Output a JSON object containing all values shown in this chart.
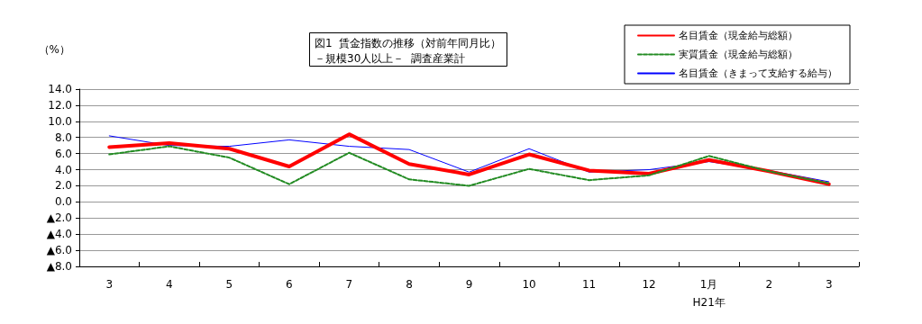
{
  "chart_data": {
    "type": "line",
    "title": "図1  賃金指数の推移（対前年同月比）",
    "subtitle": "－規模30人以上－  調査産業計",
    "ylabel": "（%）",
    "categories": [
      "3",
      "4",
      "5",
      "6",
      "7",
      "8",
      "9",
      "10",
      "11",
      "12",
      "1月\nH21年",
      "2",
      "3"
    ],
    "series": [
      {
        "name": "名目賃金（現金給与総額）",
        "color": "#ff0000",
        "line_style": "solid",
        "values": [
          6.8,
          7.3,
          6.6,
          4.4,
          8.4,
          4.7,
          3.4,
          5.9,
          3.9,
          3.5,
          5.2,
          3.8,
          2.2
        ]
      },
      {
        "name": "実質賃金（現金給与総額）",
        "color": "#228b22",
        "line_style": "dashed",
        "values": [
          5.9,
          6.9,
          5.5,
          2.2,
          6.1,
          2.8,
          2.0,
          4.1,
          2.7,
          3.3,
          5.7,
          3.8,
          2.3
        ]
      },
      {
        "name": "名目賃金（きまって支給する給与）",
        "color": "#0000ff",
        "line_style": "solid",
        "values": [
          8.2,
          7.0,
          6.9,
          7.7,
          6.9,
          6.5,
          3.7,
          6.6,
          3.7,
          4.0,
          5.0,
          3.9,
          2.5
        ]
      }
    ],
    "ylim": [
      -8,
      14
    ],
    "yticks": [
      {
        "value": -8,
        "label": "▲8.0"
      },
      {
        "value": -6,
        "label": "▲6.0"
      },
      {
        "value": -4,
        "label": "▲4.0"
      },
      {
        "value": -2,
        "label": "▲2.0"
      },
      {
        "value": 0,
        "label": "0.0"
      },
      {
        "value": 2,
        "label": "2.0"
      },
      {
        "value": 4,
        "label": "4.0"
      },
      {
        "value": 6,
        "label": "6.0"
      },
      {
        "value": 8,
        "label": "8.0"
      },
      {
        "value": 10,
        "label": "10.0"
      },
      {
        "value": 12,
        "label": "12.0"
      },
      {
        "value": 14,
        "label": "14.0"
      }
    ],
    "grid": "y",
    "legend": "top right",
    "marker": "none"
  }
}
